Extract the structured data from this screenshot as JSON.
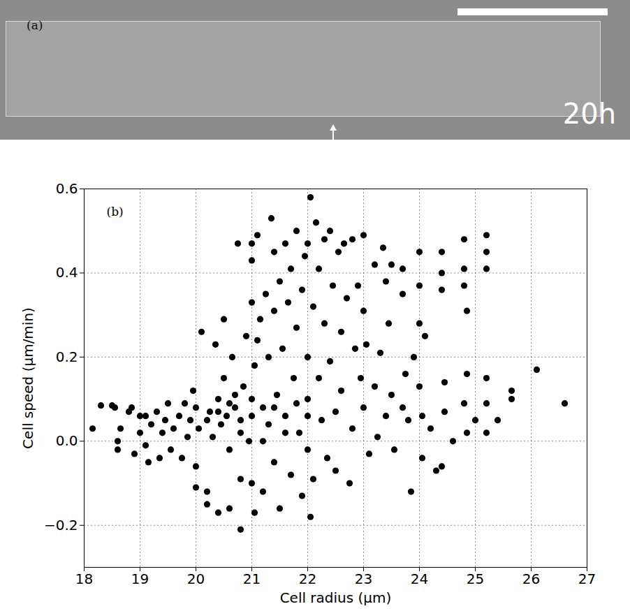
{
  "image_panel": {
    "label": "(a)",
    "time": "20h"
  },
  "chart_data": {
    "type": "scatter",
    "panel_label": "(b)",
    "x_label": "Cell radius (μm)",
    "y_label": "Cell speed (μm/min)",
    "color": "#000000",
    "marker": "circle",
    "grid": true,
    "xlim": [
      18,
      27
    ],
    "xticks": [
      18,
      19,
      20,
      21,
      22,
      23,
      24,
      25,
      26,
      27
    ],
    "ylim": [
      -0.3,
      0.6
    ],
    "yticks": [
      {
        "value": -0.2,
        "label": "−0.2"
      },
      {
        "value": 0,
        "label": "0.0"
      },
      0.2,
      0.4,
      0.6
    ],
    "x": [
      18.15,
      18.3,
      18.5,
      18.55,
      18.6,
      18.6,
      18.65,
      18.8,
      18.85,
      18.9,
      19.0,
      19.0,
      19.1,
      19.1,
      19.15,
      19.2,
      19.3,
      19.35,
      19.4,
      19.45,
      19.5,
      19.55,
      19.6,
      19.7,
      19.75,
      19.8,
      19.85,
      19.9,
      19.95,
      20.0,
      20.0,
      20.0,
      20.05,
      20.1,
      20.2,
      20.2,
      20.25,
      20.3,
      20.35,
      20.4,
      20.4,
      20.45,
      20.5,
      20.5,
      20.55,
      20.6,
      20.6,
      20.65,
      20.7,
      20.7,
      20.75,
      20.8,
      20.8,
      20.8,
      20.85,
      20.9,
      20.95,
      21.0,
      21.0,
      21.0,
      21.0,
      21.0,
      21.05,
      21.05,
      21.1,
      21.1,
      21.15,
      21.2,
      21.2,
      21.25,
      21.3,
      21.3,
      21.35,
      21.4,
      21.4,
      21.4,
      21.45,
      21.5,
      21.5,
      21.55,
      21.6,
      21.6,
      21.65,
      21.7,
      21.7,
      21.75,
      21.8,
      21.8,
      21.85,
      21.9,
      21.9,
      21.95,
      22.0,
      22.0,
      22.0,
      22.0,
      22.05,
      22.05,
      22.1,
      22.1,
      22.15,
      22.2,
      22.2,
      22.25,
      22.3,
      22.3,
      22.35,
      22.4,
      22.4,
      22.45,
      22.5,
      22.5,
      22.55,
      22.6,
      22.6,
      22.65,
      22.7,
      22.75,
      22.8,
      22.8,
      22.85,
      22.9,
      22.95,
      23.0,
      23.0,
      23.0,
      23.05,
      23.1,
      23.2,
      23.2,
      23.25,
      23.3,
      23.35,
      23.4,
      23.4,
      23.45,
      23.5,
      23.5,
      23.55,
      23.7,
      23.7,
      23.7,
      23.75,
      23.8,
      23.85,
      23.9,
      24.0,
      24.0,
      24.0,
      24.0,
      24.05,
      24.05,
      24.1,
      24.2,
      24.3,
      24.4,
      24.4,
      24.4,
      24.45,
      24.45,
      24.4,
      24.6,
      24.8,
      24.8,
      24.8,
      24.85,
      24.85,
      24.8,
      24.85,
      25.0,
      25.2,
      25.2,
      25.2,
      25.2,
      25.2,
      25.2,
      25.4,
      25.65,
      25.65,
      26.1,
      26.6,
      20.2,
      20.4,
      20.6,
      20.8,
      21.0,
      21.2,
      21.4,
      21.6,
      21.8,
      22.0
    ],
    "values": [
      0.03,
      0.085,
      0.085,
      0.08,
      0.0,
      -0.02,
      0.03,
      0.07,
      0.08,
      -0.03,
      0.06,
      0.02,
      0.06,
      -0.01,
      -0.05,
      0.04,
      0.07,
      -0.04,
      0.02,
      0.05,
      0.09,
      -0.02,
      0.03,
      0.06,
      -0.04,
      0.09,
      0.01,
      0.05,
      0.12,
      0.08,
      -0.11,
      -0.06,
      0.03,
      0.26,
      -0.12,
      -0.15,
      0.07,
      0.01,
      0.23,
      0.1,
      -0.17,
      0.04,
      0.29,
      0.15,
      0.06,
      -0.02,
      -0.16,
      0.2,
      0.08,
      0.11,
      0.47,
      -0.21,
      -0.09,
      0.05,
      0.13,
      0.25,
      0.0,
      0.33,
      0.43,
      0.47,
      0.06,
      -0.1,
      -0.17,
      0.18,
      0.24,
      0.49,
      0.29,
      0.08,
      -0.12,
      0.35,
      0.2,
      0.04,
      0.53,
      0.31,
      0.45,
      -0.05,
      0.11,
      0.38,
      -0.16,
      0.22,
      0.47,
      0.06,
      0.33,
      0.41,
      -0.08,
      0.15,
      0.5,
      0.27,
      0.02,
      0.36,
      -0.13,
      0.44,
      0.1,
      0.2,
      0.47,
      -0.02,
      0.58,
      -0.18,
      0.32,
      -0.09,
      0.52,
      0.41,
      0.15,
      0.05,
      0.28,
      0.48,
      -0.04,
      0.5,
      0.19,
      0.37,
      0.07,
      -0.07,
      0.45,
      0.26,
      0.12,
      0.47,
      0.34,
      -0.1,
      0.48,
      0.03,
      0.22,
      0.37,
      0.15,
      0.49,
      0.31,
      0.08,
      0.23,
      -0.03,
      0.42,
      0.13,
      0.01,
      0.21,
      0.46,
      0.38,
      0.06,
      0.28,
      0.42,
      0.11,
      -0.02,
      0.41,
      0.35,
      0.08,
      0.16,
      0.05,
      -0.12,
      0.2,
      0.45,
      0.37,
      0.28,
      0.13,
      0.06,
      -0.04,
      0.25,
      0.03,
      -0.07,
      0.45,
      0.4,
      0.36,
      0.14,
      0.07,
      -0.06,
      0.0,
      0.48,
      0.41,
      0.37,
      0.31,
      0.16,
      0.09,
      0.02,
      0.05,
      0.49,
      0.45,
      0.41,
      0.15,
      0.09,
      0.02,
      0.05,
      0.12,
      0.1,
      0.17,
      0.09,
      0.05,
      0.07,
      0.09,
      0.02,
      0.1,
      0.0,
      0.08,
      0.02,
      0.09,
      0.06
    ]
  }
}
